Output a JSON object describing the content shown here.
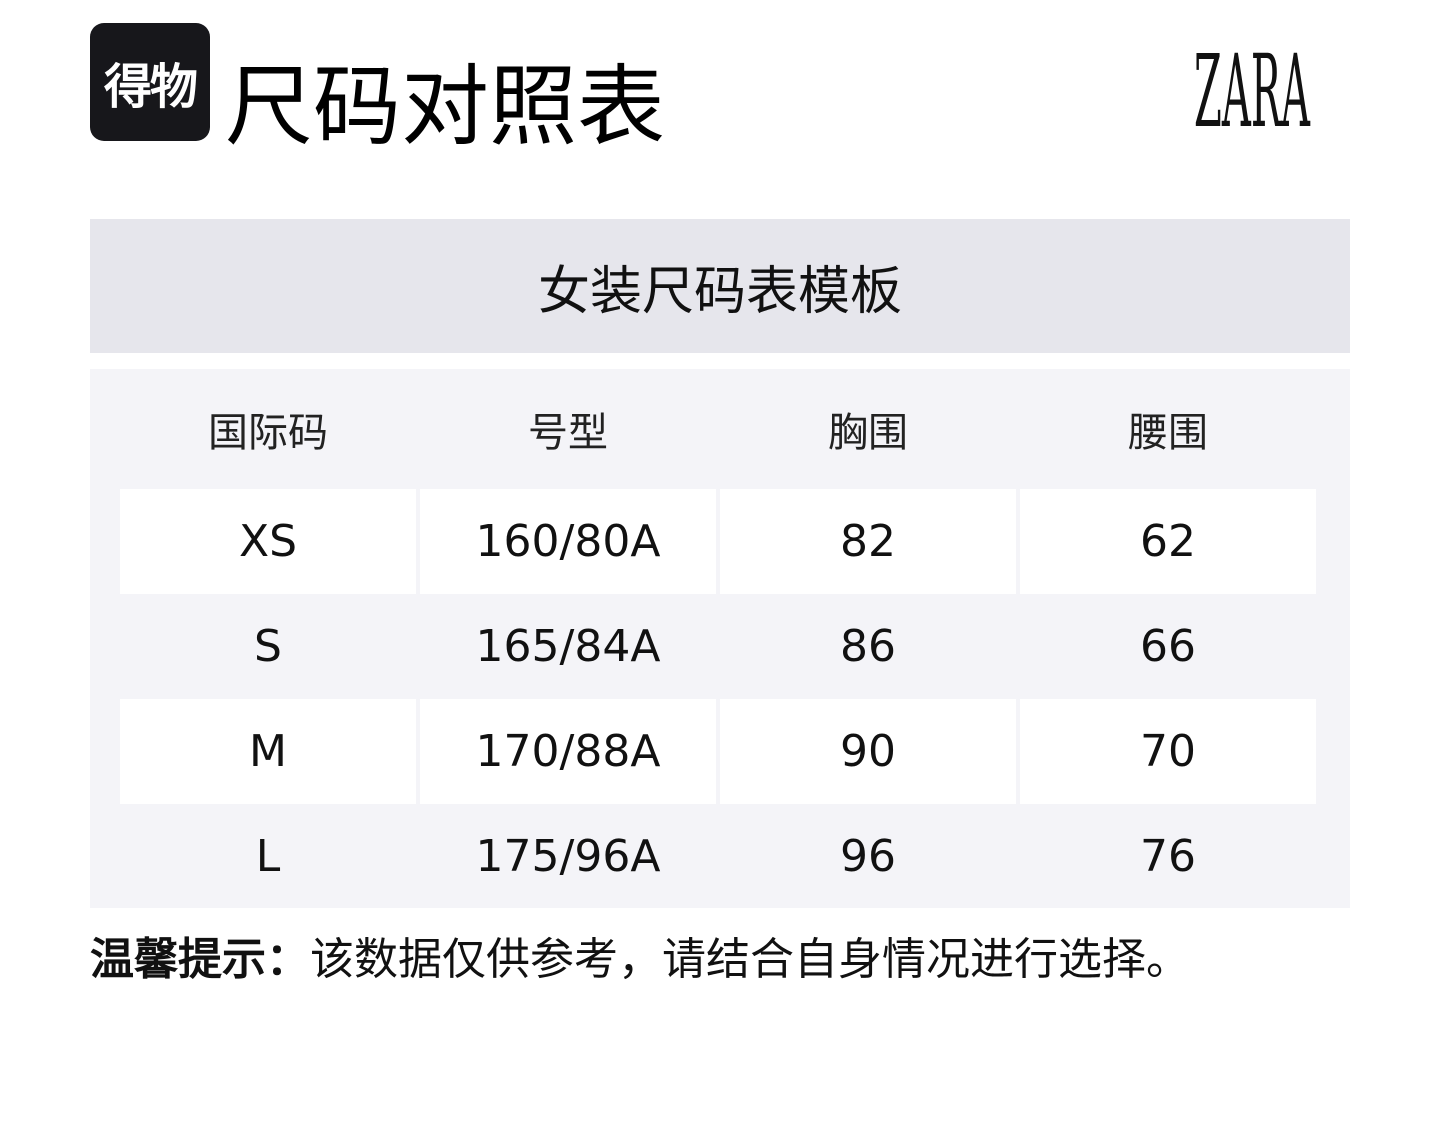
{
  "header": {
    "logo_text": "得物",
    "title": "尺码对照表",
    "brand_logo": "ZARA"
  },
  "table": {
    "caption": "女装尺码表模板",
    "columns": [
      "国际码",
      "号型",
      "胸围",
      "腰围"
    ],
    "rows": [
      [
        "XS",
        "160/80A",
        "82",
        "62"
      ],
      [
        "S",
        "165/84A",
        "86",
        "66"
      ],
      [
        "M",
        "170/88A",
        "90",
        "70"
      ],
      [
        "L",
        "175/96A",
        "96",
        "76"
      ]
    ]
  },
  "footer": {
    "tip_label": "温馨提示：",
    "tip_text": "该数据仅供参考，请结合自身情况进行选择。"
  },
  "colors": {
    "caption_bg": "#e6e6ec",
    "table_bg": "#f4f4f8",
    "logo_bg": "#17171b"
  }
}
